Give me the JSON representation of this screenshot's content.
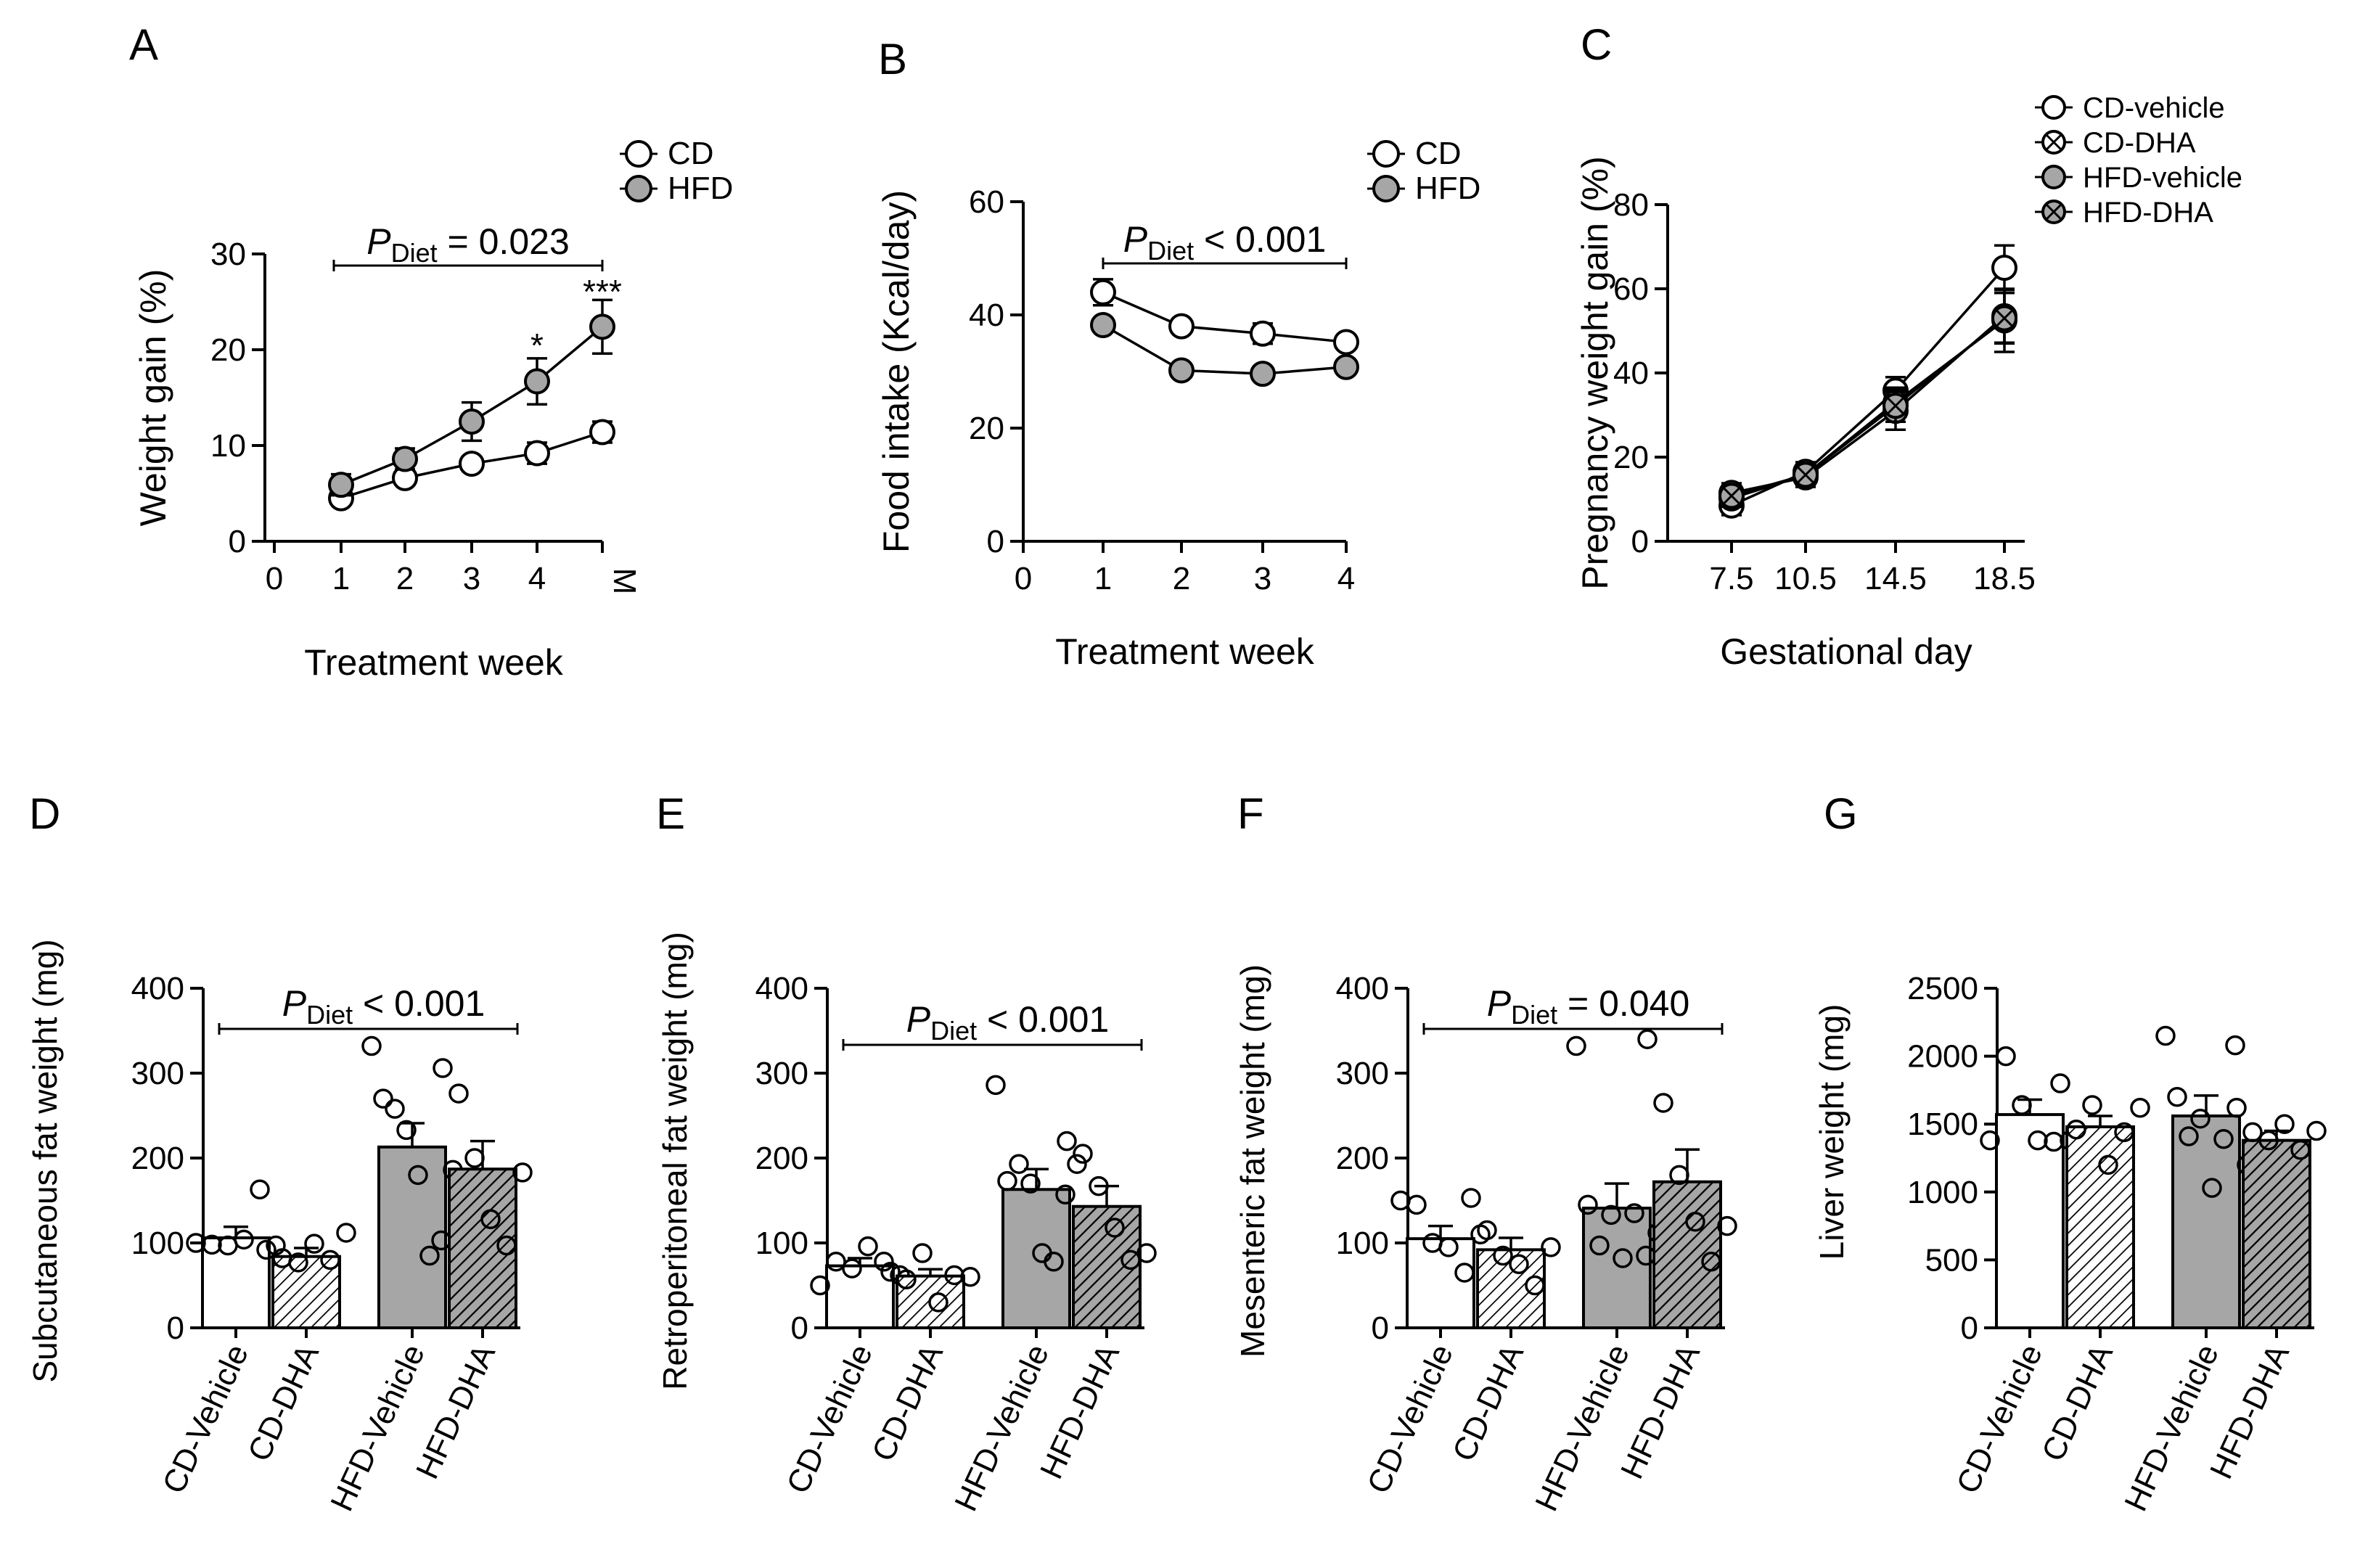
{
  "figure": {
    "colors": {
      "open": "#ffffff",
      "filled": "#a6a6a6",
      "stroke": "#000000"
    }
  },
  "chart_data": [
    {
      "panel": "A",
      "type": "line",
      "ylabel": "Weight gain (%)",
      "xlabel": "Treatment week",
      "x_categories": [
        "0",
        "1",
        "2",
        "3",
        "4",
        "M"
      ],
      "ylim": [
        0,
        30
      ],
      "yticks": [
        "0",
        "10",
        "20",
        "30"
      ],
      "legend": [
        "CD",
        "HFD"
      ],
      "stat": {
        "prefix": "P",
        "sub": "Diet",
        "rest": " = 0.023"
      },
      "annotations": [
        {
          "text": "*",
          "x_index": 4,
          "y": 20
        },
        {
          "text": "***",
          "x_index": 5,
          "y": 25.6
        }
      ],
      "series": [
        {
          "name": "CD",
          "style": "open",
          "x_index": [
            1,
            2,
            3,
            4,
            5
          ],
          "values": [
            4.5,
            6.6,
            8.1,
            9.2,
            11.4
          ],
          "errors": [
            0.6,
            0.6,
            0.6,
            1.1,
            1.1
          ]
        },
        {
          "name": "HFD",
          "style": "filled",
          "x_index": [
            1,
            2,
            3,
            4,
            5
          ],
          "values": [
            5.9,
            8.6,
            12.5,
            16.7,
            22.4
          ],
          "errors": [
            1.1,
            1.1,
            2.0,
            2.4,
            2.8
          ]
        }
      ]
    },
    {
      "panel": "B",
      "type": "line",
      "ylabel": "Food intake (Kcal/day)",
      "xlabel": "Treatment week",
      "x_categories": [
        "0",
        "1",
        "2",
        "3",
        "4"
      ],
      "ylim": [
        0,
        60
      ],
      "yticks": [
        "0",
        "20",
        "40",
        "60"
      ],
      "legend": [
        "CD",
        "HFD"
      ],
      "stat": {
        "prefix": "P",
        "sub": "Diet",
        "rest": " < 0.001"
      },
      "annotations": [],
      "series": [
        {
          "name": "CD",
          "style": "open",
          "x_index": [
            1,
            2,
            3,
            4
          ],
          "values": [
            44,
            38,
            36.7,
            35.2
          ],
          "errors": [
            2.3,
            0.8,
            1.8,
            0.8
          ]
        },
        {
          "name": "HFD",
          "style": "filled",
          "x_index": [
            1,
            2,
            3,
            4
          ],
          "values": [
            38.2,
            30.2,
            29.6,
            30.8
          ],
          "errors": [
            0.8,
            0.6,
            0.6,
            0.8
          ]
        }
      ]
    },
    {
      "panel": "C",
      "type": "line",
      "ylabel": "Pregnancy weight gain (%)",
      "xlabel": "Gestational day",
      "x_categories": [
        "7.5",
        "10.5",
        "14.5",
        "18.5"
      ],
      "ylim": [
        0,
        80
      ],
      "yticks": [
        "0",
        "20",
        "40",
        "60",
        "80"
      ],
      "legend": [
        "CD-vehicle",
        "CD-DHA",
        "HFD-vehicle",
        "HFD-DHA"
      ],
      "series": [
        {
          "name": "CD-vehicle",
          "style": "open",
          "x_index": [
            0,
            1,
            2,
            3
          ],
          "values": [
            8.5,
            16.5,
            35.8,
            65
          ],
          "errors": [
            2.3,
            2.3,
            3.2,
            5.3
          ]
        },
        {
          "name": "CD-DHA",
          "style": "open-x",
          "x_index": [
            0,
            1,
            2,
            3
          ],
          "values": [
            10.2,
            15.8,
            33,
            52.5
          ],
          "errors": [
            2.0,
            2.8,
            3.5,
            7.5
          ]
        },
        {
          "name": "HFD-vehicle",
          "style": "filled",
          "x_index": [
            0,
            1,
            2,
            3
          ],
          "values": [
            11.5,
            15.2,
            31,
            53.5
          ],
          "errors": [
            2.3,
            2.3,
            4.5,
            6.3
          ]
        },
        {
          "name": "HFD-DHA",
          "style": "filled-x",
          "x_index": [
            0,
            1,
            2,
            3
          ],
          "values": [
            10.8,
            15.8,
            32.2,
            53
          ],
          "errors": [
            2.0,
            2.5,
            3.8,
            6.0
          ]
        }
      ]
    },
    {
      "panel": "D",
      "type": "bar",
      "ylabel": "Subcutaneous fat weight (mg)",
      "categories": [
        "CD-Vehicle",
        "CD-DHA",
        "HFD-Vehicle",
        "HFD-DHA"
      ],
      "ylim": [
        0,
        400
      ],
      "yticks": [
        "0",
        "100",
        "200",
        "300",
        "400"
      ],
      "stat": {
        "prefix": "P",
        "sub": "Diet",
        "rest": " < 0.001"
      },
      "values": [
        106,
        84,
        213,
        187
      ],
      "errors": [
        13,
        10,
        28,
        33
      ],
      "points": [
        [
          100,
          98,
          97,
          104,
          163,
          97
        ],
        [
          92,
          82,
          77,
          99,
          80,
          112
        ],
        [
          332,
          270,
          258,
          233,
          180,
          85,
          103,
          186
        ],
        [
          306,
          276,
          200,
          128,
          97,
          183
        ]
      ]
    },
    {
      "panel": "E",
      "type": "bar",
      "ylabel": "Retroperitoneal fat weight (mg)",
      "categories": [
        "CD-Vehicle",
        "CD-DHA",
        "HFD-Vehicle",
        "HFD-DHA"
      ],
      "ylim": [
        0,
        400
      ],
      "yticks": [
        "0",
        "100",
        "200",
        "300",
        "400"
      ],
      "stat": {
        "prefix": "P",
        "sub": "Diet",
        "rest": " < 0.001"
      },
      "values": [
        73,
        61,
        163,
        143
      ],
      "errors": [
        9,
        8,
        24,
        24
      ],
      "points": [
        [
          50,
          78,
          70,
          96,
          78,
          62
        ],
        [
          66,
          57,
          88,
          30,
          62,
          60
        ],
        [
          286,
          173,
          193,
          170,
          88,
          78,
          157,
          193
        ],
        [
          220,
          205,
          167,
          118,
          80,
          88
        ]
      ]
    },
    {
      "panel": "F",
      "type": "bar",
      "ylabel": "Mesenteric fat weight (mg)",
      "categories": [
        "CD-Vehicle",
        "CD-DHA",
        "HFD-Vehicle",
        "HFD-DHA"
      ],
      "ylim": [
        0,
        400
      ],
      "yticks": [
        "0",
        "100",
        "200",
        "300",
        "400"
      ],
      "stat": {
        "prefix": "P",
        "sub": "Diet",
        "rest": " = 0.040"
      },
      "values": [
        105,
        92,
        141,
        172
      ],
      "errors": [
        15,
        14,
        29,
        38
      ],
      "points": [
        [
          150,
          145,
          100,
          95,
          65,
          110
        ],
        [
          153,
          115,
          85,
          75,
          50,
          95
        ],
        [
          332,
          145,
          97,
          133,
          82,
          135,
          85,
          112
        ],
        [
          340,
          265,
          180,
          125,
          78,
          120
        ]
      ]
    },
    {
      "panel": "G",
      "type": "bar",
      "ylabel": "Liver weight (mg)",
      "categories": [
        "CD-Vehicle",
        "CD-DHA",
        "HFD-Vehicle",
        "HFD-DHA"
      ],
      "ylim": [
        0,
        2500
      ],
      "yticks": [
        "0",
        "500",
        "1000",
        "1500",
        "2000",
        "2500"
      ],
      "stat": null,
      "values": [
        1570,
        1480,
        1560,
        1380
      ],
      "errors": [
        110,
        80,
        150,
        70
      ],
      "points": [
        [
          1380,
          2000,
          1640,
          1380,
          1370,
          1380
        ],
        [
          1800,
          1460,
          1640,
          1200,
          1440,
          1620
        ],
        [
          2150,
          1700,
          1410,
          1540,
          1030,
          1390,
          2080,
          1200
        ],
        [
          1620,
          1440,
          1380,
          1500,
          1310,
          1450
        ]
      ]
    }
  ]
}
